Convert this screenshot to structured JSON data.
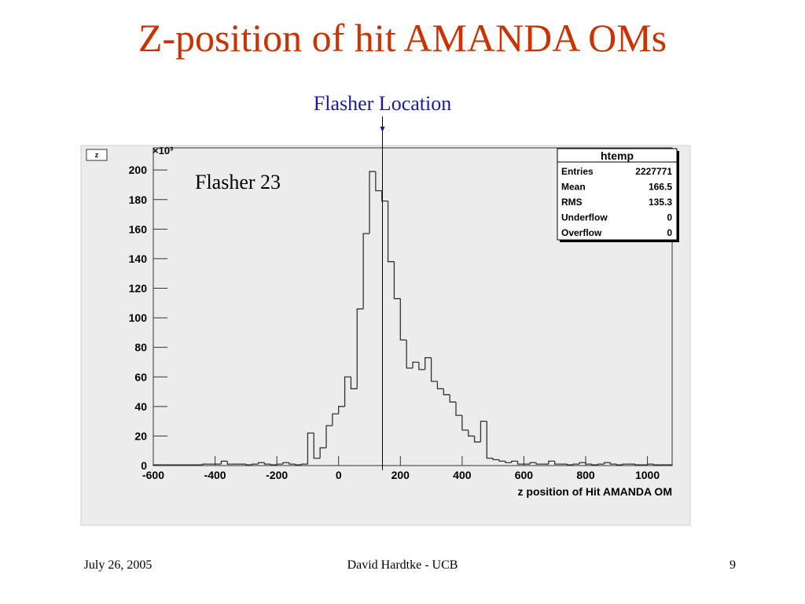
{
  "slide": {
    "title": "Z-position of hit AMANDA OMs",
    "footer_left": "July 26, 2005",
    "footer_center": "David Hardtke - UCB",
    "footer_right": "9"
  },
  "chart_data": {
    "type": "histogram",
    "annotation": {
      "text": "Flasher Location",
      "x": 142
    },
    "label": "Flasher 23",
    "corner_tab": "z",
    "y_multiplier": "×10³",
    "xlabel": "z position of Hit AMANDA OM",
    "color": "#333333",
    "stats_title": "htemp",
    "stats": [
      {
        "label": "Entries",
        "value": 2227771
      },
      {
        "label": "Mean",
        "value": 166.5
      },
      {
        "label": "RMS",
        "value": 135.3
      },
      {
        "label": "Underflow",
        "value": 0
      },
      {
        "label": "Overflow",
        "value": 0
      }
    ],
    "bins": [
      -600,
      -580,
      -560,
      -540,
      -520,
      -500,
      -480,
      -460,
      -440,
      -420,
      -400,
      -380,
      -360,
      -340,
      -320,
      -300,
      -280,
      -260,
      -240,
      -220,
      -200,
      -180,
      -160,
      -140,
      -120,
      -100,
      -80,
      -60,
      -40,
      -20,
      0,
      20,
      40,
      60,
      80,
      100,
      120,
      140,
      160,
      180,
      200,
      220,
      240,
      260,
      280,
      300,
      320,
      340,
      360,
      380,
      400,
      420,
      440,
      460,
      480,
      500,
      520,
      540,
      560,
      580,
      600,
      620,
      640,
      660,
      680,
      700,
      720,
      740,
      760,
      780,
      800,
      820,
      840,
      860,
      880,
      900,
      920,
      940,
      960,
      980,
      1000,
      1020,
      1040,
      1060,
      1080
    ],
    "values": [
      0.5,
      0.5,
      0.5,
      0.5,
      0.5,
      0.5,
      0.5,
      0.5,
      1,
      1,
      1,
      3,
      1,
      1,
      1,
      0.5,
      1,
      2,
      1,
      0.5,
      1,
      2,
      1,
      0.5,
      1,
      22,
      5,
      12,
      27,
      35,
      40,
      60,
      52,
      106,
      157,
      199,
      186,
      179,
      138,
      113,
      85,
      66,
      70,
      65,
      73,
      57,
      52,
      48,
      43,
      34,
      24,
      20,
      16,
      30,
      5,
      4,
      3,
      2,
      3,
      1,
      1,
      2,
      1,
      1,
      3,
      1,
      1,
      0.5,
      1,
      2,
      1,
      0.5,
      1,
      2,
      1,
      0.5,
      1,
      1,
      0.5,
      0.5,
      1,
      0.5,
      0.5,
      0.5
    ],
    "xlim": [
      -600,
      1080
    ],
    "xticks": [
      -600,
      -400,
      -200,
      0,
      200,
      400,
      600,
      800,
      1000
    ],
    "ylim": [
      0,
      215
    ],
    "yticks": [
      0,
      20,
      40,
      60,
      80,
      100,
      120,
      140,
      160,
      180,
      200
    ]
  }
}
